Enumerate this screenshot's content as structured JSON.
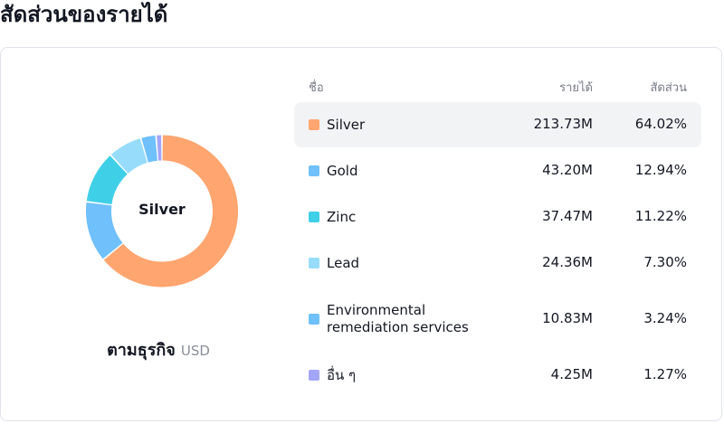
{
  "title": "สัดส่วนของรายได้",
  "donut": {
    "center_label": "Silver"
  },
  "caption": {
    "main": "ตามธุรกิจ",
    "unit": "USD"
  },
  "table": {
    "headers": {
      "name": "ชื่อ",
      "revenue": "รายได้",
      "share": "สัดส่วน"
    },
    "rows": [
      {
        "name": "Silver",
        "revenue": "213.73M",
        "share": "64.02%",
        "color": "#FFA56F",
        "selected": true
      },
      {
        "name": "Gold",
        "revenue": "43.20M",
        "share": "12.94%",
        "color": "#6FC0FB"
      },
      {
        "name": "Zinc",
        "revenue": "37.47M",
        "share": "11.22%",
        "color": "#3FD0E8"
      },
      {
        "name": "Lead",
        "revenue": "24.36M",
        "share": "7.30%",
        "color": "#97DDFB"
      },
      {
        "name": "Environmental remediation services",
        "revenue": "10.83M",
        "share": "3.24%",
        "color": "#6FC0FB"
      },
      {
        "name": "อื่น ๆ",
        "revenue": "4.25M",
        "share": "1.27%",
        "color": "#A3A6F6"
      }
    ]
  },
  "chart_data": {
    "type": "pie",
    "categories": [
      "Silver",
      "Gold",
      "Zinc",
      "Lead",
      "Environmental remediation services",
      "อื่น ๆ"
    ],
    "values": [
      213.73,
      43.2,
      37.47,
      24.36,
      10.83,
      4.25
    ],
    "percentages": [
      64.02,
      12.94,
      11.22,
      7.3,
      3.24,
      1.27
    ],
    "colors": [
      "#FFA56F",
      "#6FC0FB",
      "#3FD0E8",
      "#97DDFB",
      "#6FC0FB",
      "#A3A6F6"
    ],
    "selected": "Silver"
  }
}
